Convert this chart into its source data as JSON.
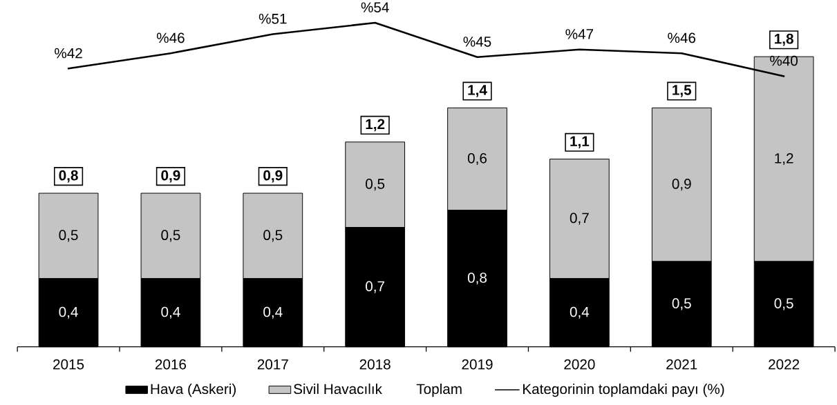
{
  "chart_data": {
    "type": "bar",
    "stacked": true,
    "categories": [
      "2015",
      "2016",
      "2017",
      "2018",
      "2019",
      "2020",
      "2021",
      "2022"
    ],
    "series": [
      {
        "name": "Hava (Askeri)",
        "color": "#000000",
        "values": [
          0.4,
          0.4,
          0.4,
          0.7,
          0.8,
          0.4,
          0.5,
          0.5
        ],
        "value_labels": [
          "0,4",
          "0,4",
          "0,4",
          "0,7",
          "0,8",
          "0,4",
          "0,5",
          "0,5"
        ]
      },
      {
        "name": "Sivil Havacılık",
        "color": "#c4c4c4",
        "values": [
          0.5,
          0.5,
          0.5,
          0.5,
          0.6,
          0.7,
          0.9,
          1.2
        ],
        "value_labels": [
          "0,5",
          "0,5",
          "0,5",
          "0,5",
          "0,6",
          "0,7",
          "0,9",
          "1,2"
        ]
      },
      {
        "name": "Kategorinin toplamdaki payı (%)",
        "type": "line",
        "axis": "y2",
        "color": "#000000",
        "values": [
          42,
          46,
          51,
          54,
          45,
          47,
          46,
          40
        ],
        "value_labels": [
          "%42",
          "%46",
          "%51",
          "%54",
          "%45",
          "%47",
          "%46",
          "%40"
        ]
      }
    ],
    "totals": [
      "0,8",
      "0,9",
      "0,9",
      "1,2",
      "1,4",
      "1,1",
      "1,5",
      "1,8"
    ],
    "annotations": [
      "Toplam"
    ],
    "tick_labels": "x",
    "legend": "bottom"
  }
}
